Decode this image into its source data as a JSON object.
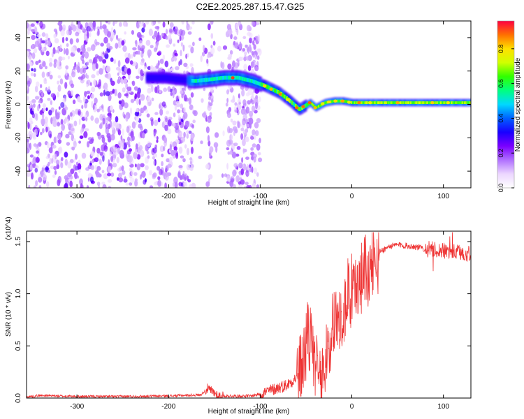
{
  "figure_title": "C2E2.2025.287.15.47.G25",
  "chart_data": [
    {
      "type": "heatmap",
      "xlabel": "Height of straight line (km)",
      "ylabel": "Frequency (Hz)",
      "xlim": [
        -355,
        130
      ],
      "ylim": [
        -50,
        50
      ],
      "xticks": [
        -300,
        -200,
        -100,
        0,
        100
      ],
      "yticks": [
        -40,
        -20,
        0,
        20,
        40
      ],
      "xtick_labels": [
        "-300",
        "-200",
        "-100",
        "0",
        "100"
      ],
      "ytick_labels": [
        "-40",
        "-20",
        "0",
        "20",
        "40"
      ],
      "colorbar": {
        "label": "Normalized spectral amplitude",
        "range": [
          0,
          0.96
        ],
        "ticks": [
          0,
          0.2,
          0.4,
          0.6,
          0.8
        ],
        "tick_labels": [
          "0.0",
          "0.2",
          "0.4",
          "0.6",
          "0.8"
        ],
        "colors": [
          "#ffffff",
          "#ecd6ff",
          "#b070ff",
          "#7a00ff",
          "#1800ff",
          "#0060ff",
          "#00d8ff",
          "#00ff80",
          "#30ff00",
          "#d0ff00",
          "#ffe000",
          "#ff7000",
          "#ff0040"
        ]
      },
      "noise_region_x": [
        -355,
        -100
      ],
      "noise_gaps_x": [
        [
          -172,
          -158
        ],
        [
          -152,
          -136
        ]
      ],
      "ridge": {
        "x": [
          -225,
          -205,
          -190,
          -172,
          -155,
          -140,
          -125,
          -110,
          -95,
          -80,
          -68,
          -58,
          -52,
          -46,
          -40,
          -30,
          -20,
          -10,
          0,
          20,
          50,
          90,
          130
        ],
        "y": [
          16,
          16,
          15,
          14,
          15,
          16,
          16,
          14,
          11,
          7,
          2,
          -3,
          -1,
          1,
          -2,
          1,
          2,
          2,
          1,
          1,
          1,
          1,
          1
        ]
      }
    },
    {
      "type": "line",
      "xlabel": "Height of straight line (km)",
      "ylabel": "SNR (10 * v/v)",
      "y_multiplier": "(x10^4)",
      "xlim": [
        -355,
        130
      ],
      "ylim": [
        0,
        1.6
      ],
      "xticks": [
        -300,
        -200,
        -100,
        0,
        100
      ],
      "yticks": [
        0,
        0.5,
        1.0,
        1.5
      ],
      "xtick_labels": [
        "-300",
        "-200",
        "-100",
        "0",
        "100"
      ],
      "ytick_labels": [
        "0.0",
        "0.5",
        "1.0",
        "1.5"
      ],
      "color": "#ee3333",
      "series": [
        {
          "name": "SNR",
          "x": [
            -355,
            -340,
            -300,
            -250,
            -200,
            -165,
            -158,
            -150,
            -145,
            -130,
            -110,
            -100,
            -90,
            -80,
            -70,
            -60,
            -55,
            -50,
            -45,
            -42,
            -38,
            -35,
            -30,
            -25,
            -20,
            -15,
            -10,
            -5,
            0,
            5,
            10,
            20,
            30,
            40,
            50,
            60,
            70,
            80,
            90,
            100,
            110,
            120,
            130
          ],
          "y": [
            0.01,
            0.025,
            0.015,
            0.015,
            0.02,
            0.03,
            0.09,
            0.05,
            0.02,
            0.02,
            0.02,
            0.04,
            0.07,
            0.1,
            0.13,
            0.2,
            0.3,
            0.45,
            0.55,
            0.3,
            0.2,
            0.1,
            0.3,
            0.6,
            0.75,
            0.85,
            0.9,
            1.0,
            1.05,
            1.15,
            1.2,
            1.3,
            1.4,
            1.45,
            1.47,
            1.46,
            1.45,
            1.43,
            1.42,
            1.41,
            1.4,
            1.39,
            1.38
          ]
        }
      ]
    }
  ]
}
